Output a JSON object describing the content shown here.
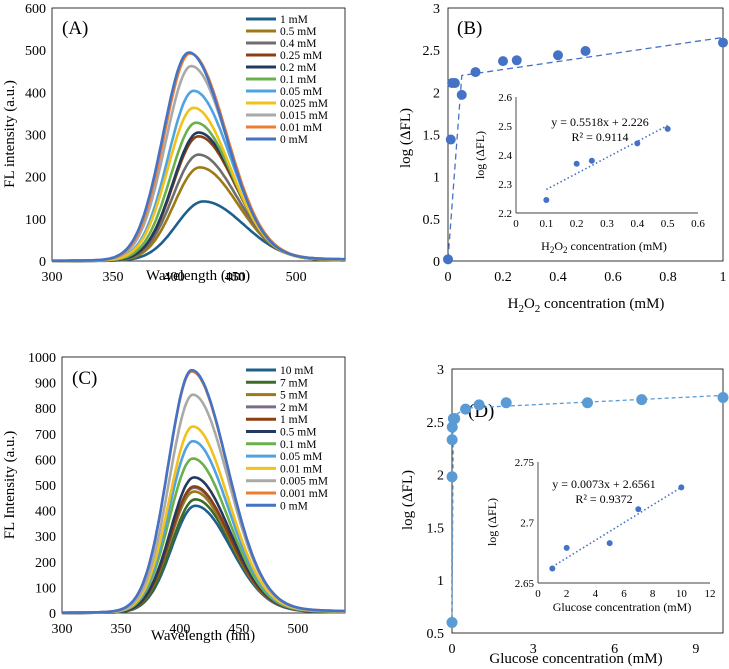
{
  "chart_data": [
    {
      "panel": "(A)",
      "type": "line",
      "xlabel": "Wavelength (nm)",
      "ylabel": "FL intensity (a.u.)",
      "xlim": [
        300,
        540
      ],
      "ylim": [
        0,
        600
      ],
      "xticks": [
        300,
        350,
        400,
        450,
        500
      ],
      "yticks": [
        0,
        100,
        200,
        300,
        400,
        500,
        600
      ],
      "legend_position": "top-right",
      "series": [
        {
          "name": "1 mM",
          "color": "#1f5f8b",
          "peak": 140,
          "peak_x": 424,
          "sigma_left": 22,
          "sigma_right": 33
        },
        {
          "name": "0.5 mM",
          "color": "#9c7a14",
          "peak": 220,
          "peak_x": 421,
          "sigma_left": 21,
          "sigma_right": 31
        },
        {
          "name": "0.4 mM",
          "color": "#6e6e6e",
          "peak": 250,
          "peak_x": 420,
          "sigma_left": 21,
          "sigma_right": 31
        },
        {
          "name": "0.25 mM",
          "color": "#8b3f12",
          "peak": 293,
          "peak_x": 420,
          "sigma_left": 21,
          "sigma_right": 30
        },
        {
          "name": "0.2 mM",
          "color": "#233a5e",
          "peak": 302,
          "peak_x": 420,
          "sigma_left": 21,
          "sigma_right": 30
        },
        {
          "name": "0.1 mM",
          "color": "#6ab04c",
          "peak": 325,
          "peak_x": 418,
          "sigma_left": 21,
          "sigma_right": 30
        },
        {
          "name": "0.05 mM",
          "color": "#4fa3e0",
          "peak": 400,
          "peak_x": 416,
          "sigma_left": 21,
          "sigma_right": 30
        },
        {
          "name": "0.025 mM",
          "color": "#f2c21b",
          "peak": 360,
          "peak_x": 416,
          "sigma_left": 21,
          "sigma_right": 30
        },
        {
          "name": "0.015 mM",
          "color": "#a9a9a9",
          "peak": 458,
          "peak_x": 414,
          "sigma_left": 21,
          "sigma_right": 30
        },
        {
          "name": "0.01 mM",
          "color": "#ed7d31",
          "peak": 488,
          "peak_x": 413,
          "sigma_left": 21,
          "sigma_right": 30
        },
        {
          "name": "0 mM",
          "color": "#4472c4",
          "peak": 490,
          "peak_x": 412,
          "sigma_left": 21,
          "sigma_right": 30
        }
      ]
    },
    {
      "panel": "(B)",
      "type": "scatter",
      "xlabel": "H2O2 concentration (mM)",
      "ylabel": "log (ΔFL)",
      "xlim": [
        0,
        1
      ],
      "ylim": [
        0,
        3
      ],
      "xticks": [
        "0",
        "0.2",
        "0.4",
        "0.6",
        "0.8",
        "1"
      ],
      "yticks": [
        "0",
        "0.5",
        "1",
        "1.5",
        "2",
        "2.5",
        "3"
      ],
      "color": "#4472c4",
      "points": [
        [
          0,
          0.02
        ],
        [
          0.01,
          1.44
        ],
        [
          0.015,
          2.11
        ],
        [
          0.025,
          2.11
        ],
        [
          0.05,
          1.97
        ],
        [
          0.1,
          2.24
        ],
        [
          0.2,
          2.37
        ],
        [
          0.25,
          2.38
        ],
        [
          0.4,
          2.44
        ],
        [
          0.5,
          2.49
        ],
        [
          1,
          2.59
        ]
      ],
      "dashed_fit": [
        [
          0,
          0.02
        ],
        [
          0.05,
          2.2
        ],
        [
          1,
          2.65
        ]
      ],
      "inset": {
        "xlabel": "H2O2 concentration (mM)",
        "ylabel": "log (ΔFL)",
        "xlim": [
          0,
          0.6
        ],
        "ylim": [
          2.2,
          2.6
        ],
        "xticks": [
          "0",
          "0.1",
          "0.2",
          "0.3",
          "0.4",
          "0.5",
          "0.6"
        ],
        "yticks": [
          "2.2",
          "2.3",
          "2.4",
          "2.5",
          "2.6"
        ],
        "points": [
          [
            0.1,
            2.245
          ],
          [
            0.2,
            2.37
          ],
          [
            0.25,
            2.38
          ],
          [
            0.4,
            2.44
          ],
          [
            0.5,
            2.49
          ]
        ],
        "equation": "y = 0.5518x + 2.226",
        "r2": "R² = 0.9114",
        "fit": {
          "slope": 0.5518,
          "intercept": 2.226,
          "x_range": [
            0.1,
            0.5
          ]
        }
      }
    },
    {
      "panel": "(C)",
      "type": "line",
      "xlabel": "Wavelength (nm)",
      "ylabel": "FL Intensity (a.u.)",
      "xlim": [
        300,
        540
      ],
      "ylim": [
        0,
        1000
      ],
      "xticks": [
        300,
        350,
        400,
        450,
        500
      ],
      "yticks": [
        0,
        100,
        200,
        300,
        400,
        500,
        600,
        700,
        800,
        900,
        1000
      ],
      "legend_position": "top-right",
      "series": [
        {
          "name": "10 mM",
          "color": "#1f5f8b",
          "peak": 415,
          "peak_x": 413,
          "sigma_left": 20,
          "sigma_right": 30
        },
        {
          "name": "7 mM",
          "color": "#3d6b2c",
          "peak": 440,
          "peak_x": 413,
          "sigma_left": 20,
          "sigma_right": 30
        },
        {
          "name": "5 mM",
          "color": "#9c7a14",
          "peak": 470,
          "peak_x": 412,
          "sigma_left": 20,
          "sigma_right": 30
        },
        {
          "name": "2 mM",
          "color": "#7a6c8c",
          "peak": 485,
          "peak_x": 412,
          "sigma_left": 20,
          "sigma_right": 30
        },
        {
          "name": "1 mM",
          "color": "#8b3f12",
          "peak": 490,
          "peak_x": 412,
          "sigma_left": 20,
          "sigma_right": 30
        },
        {
          "name": "0.5 mM",
          "color": "#233a5e",
          "peak": 525,
          "peak_x": 412,
          "sigma_left": 20,
          "sigma_right": 30
        },
        {
          "name": "0.1 mM",
          "color": "#6ab04c",
          "peak": 598,
          "peak_x": 411,
          "sigma_left": 20,
          "sigma_right": 30
        },
        {
          "name": "0.05 mM",
          "color": "#4fa3e0",
          "peak": 665,
          "peak_x": 411,
          "sigma_left": 20,
          "sigma_right": 30
        },
        {
          "name": "0.01 mM",
          "color": "#f2c21b",
          "peak": 722,
          "peak_x": 411,
          "sigma_left": 20,
          "sigma_right": 30
        },
        {
          "name": "0.005 mM",
          "color": "#a9a9a9",
          "peak": 845,
          "peak_x": 411,
          "sigma_left": 20,
          "sigma_right": 30
        },
        {
          "name": "0.001 mM",
          "color": "#ed7d31",
          "peak": 935,
          "peak_x": 410,
          "sigma_left": 20,
          "sigma_right": 30
        },
        {
          "name": "0 mM",
          "color": "#4472c4",
          "peak": 940,
          "peak_x": 410,
          "sigma_left": 20,
          "sigma_right": 30
        }
      ]
    },
    {
      "panel": "(D)",
      "type": "scatter",
      "xlabel": "Glucose concentration (mM)",
      "ylabel": "log (ΔFL)",
      "xlim": [
        0,
        10
      ],
      "ylim": [
        0.5,
        3
      ],
      "xticks": [
        "0",
        "3",
        "6",
        "9"
      ],
      "yticks": [
        "0.5",
        "1",
        "1.5",
        "2",
        "2.5",
        "3"
      ],
      "color": "#5b9bd5",
      "points": [
        [
          0,
          0.6
        ],
        [
          0.001,
          1.98
        ],
        [
          0.005,
          2.33
        ],
        [
          0.01,
          2.45
        ],
        [
          0.05,
          2.53
        ],
        [
          0.1,
          2.53
        ],
        [
          0.5,
          2.62
        ],
        [
          1,
          2.66
        ],
        [
          2,
          2.68
        ],
        [
          5,
          2.68
        ],
        [
          7,
          2.71
        ],
        [
          10,
          2.73
        ]
      ],
      "dashed_fit": [
        [
          0,
          0.6
        ],
        [
          0.05,
          2.55
        ],
        [
          0.5,
          2.63
        ],
        [
          10,
          2.75
        ]
      ],
      "inset": {
        "xlabel": "Glucose concentration (mM)",
        "ylabel": "log (ΔFL)",
        "xlim": [
          0,
          12
        ],
        "ylim": [
          2.65,
          2.75
        ],
        "xticks": [
          "0",
          "2",
          "4",
          "6",
          "8",
          "10",
          "12"
        ],
        "yticks": [
          "2.65",
          "2.7",
          "2.75"
        ],
        "points": [
          [
            1,
            2.662
          ],
          [
            2,
            2.679
          ],
          [
            5,
            2.683
          ],
          [
            7,
            2.711
          ],
          [
            10,
            2.729
          ]
        ],
        "equation": "y = 0.0073x + 2.6561",
        "r2": "R² = 0.9372",
        "fit": {
          "slope": 0.0073,
          "intercept": 2.6561,
          "x_range": [
            1,
            10
          ]
        }
      }
    }
  ]
}
